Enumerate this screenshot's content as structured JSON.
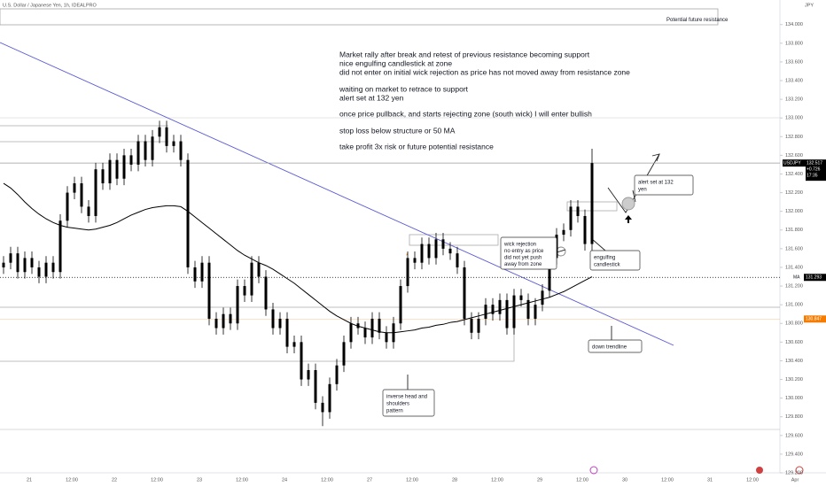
{
  "chart_data": {
    "type": "candlestick",
    "title": "U.S. Dollar / Japanese Yen, 1h, IDEALPRO",
    "currency": "JPY",
    "open": [
      131.4,
      131.45,
      131.55,
      131.35,
      131.5,
      131.4,
      131.3,
      131.45,
      131.35,
      131.9,
      132.2,
      132.3,
      132.05,
      131.95,
      132.45,
      132.3,
      132.55,
      132.35,
      132.6,
      132.5,
      132.75,
      132.55,
      132.8,
      132.9,
      132.7,
      132.75,
      132.55,
      131.4,
      131.25,
      131.45,
      130.85,
      130.75,
      130.9,
      130.8,
      131.2,
      131.1,
      131.45,
      131.3,
      130.95,
      130.75,
      130.85,
      130.55,
      130.6,
      130.2,
      130.3,
      129.95,
      129.85,
      130.15,
      130.35,
      130.6,
      130.8,
      130.75,
      130.65,
      130.85,
      130.7,
      130.6,
      130.8,
      131.2,
      131.5,
      131.45,
      131.65,
      131.5,
      131.7,
      131.6,
      131.55,
      131.4,
      130.85,
      130.7,
      130.85,
      131.0,
      130.9,
      131.05,
      130.75,
      131.1,
      131.05,
      130.85,
      131.0,
      131.15,
      131.5,
      131.75,
      131.8,
      132.05,
      131.95,
      131.65
    ],
    "high": [
      131.52,
      131.62,
      131.62,
      131.57,
      131.57,
      131.47,
      131.52,
      131.52,
      131.97,
      132.27,
      132.37,
      132.37,
      132.12,
      132.52,
      132.52,
      132.62,
      132.62,
      132.67,
      132.67,
      132.82,
      132.82,
      132.87,
      132.97,
      132.97,
      132.82,
      132.82,
      132.62,
      131.47,
      131.52,
      131.52,
      130.92,
      130.97,
      130.97,
      131.27,
      131.27,
      131.52,
      131.52,
      131.37,
      131.02,
      130.92,
      130.92,
      130.67,
      130.67,
      130.37,
      130.37,
      130.02,
      130.22,
      130.42,
      130.67,
      130.87,
      130.87,
      130.82,
      130.92,
      130.92,
      130.77,
      130.87,
      131.27,
      131.57,
      131.57,
      131.72,
      131.72,
      131.77,
      131.77,
      131.67,
      131.62,
      131.47,
      130.92,
      130.92,
      131.07,
      131.07,
      131.12,
      131.12,
      131.17,
      131.17,
      131.12,
      131.07,
      131.22,
      131.57,
      131.82,
      131.87,
      132.12,
      132.12,
      132.02,
      132.67
    ],
    "low": [
      131.33,
      131.38,
      131.28,
      131.28,
      131.33,
      131.23,
      131.23,
      131.28,
      131.28,
      131.83,
      132.13,
      131.98,
      131.88,
      131.88,
      132.23,
      132.23,
      132.28,
      132.28,
      132.43,
      132.43,
      132.48,
      132.48,
      132.73,
      132.63,
      132.63,
      132.48,
      131.33,
      131.18,
      131.18,
      130.78,
      130.68,
      130.68,
      130.73,
      130.73,
      131.03,
      131.03,
      131.23,
      130.88,
      130.68,
      130.68,
      130.48,
      130.48,
      130.13,
      130.13,
      129.88,
      129.7,
      129.78,
      130.08,
      130.28,
      130.53,
      130.68,
      130.58,
      130.58,
      130.63,
      130.53,
      130.53,
      130.73,
      131.13,
      131.38,
      131.38,
      131.43,
      131.43,
      131.53,
      131.48,
      131.33,
      130.78,
      130.63,
      130.63,
      130.78,
      130.83,
      130.83,
      130.68,
      130.68,
      130.98,
      130.78,
      130.78,
      130.93,
      131.08,
      131.43,
      131.68,
      131.73,
      131.88,
      131.58,
      131.58
    ],
    "close": [
      131.45,
      131.55,
      131.35,
      131.5,
      131.4,
      131.3,
      131.45,
      131.35,
      131.9,
      132.2,
      132.3,
      132.05,
      131.95,
      132.45,
      132.3,
      132.55,
      132.35,
      132.6,
      132.5,
      132.75,
      132.55,
      132.8,
      132.9,
      132.7,
      132.75,
      132.55,
      131.4,
      131.25,
      131.45,
      130.85,
      130.75,
      130.9,
      130.8,
      131.2,
      131.1,
      131.45,
      131.3,
      130.95,
      130.75,
      130.85,
      130.55,
      130.6,
      130.2,
      130.3,
      129.95,
      129.85,
      130.15,
      130.35,
      130.6,
      130.8,
      130.75,
      130.65,
      130.85,
      130.7,
      130.6,
      130.8,
      131.2,
      131.5,
      131.45,
      131.65,
      131.5,
      131.7,
      131.6,
      131.55,
      131.4,
      130.85,
      130.7,
      130.85,
      131.0,
      130.9,
      131.05,
      130.75,
      131.1,
      131.05,
      130.85,
      131.0,
      131.15,
      131.5,
      131.75,
      131.8,
      132.05,
      131.95,
      131.65,
      132.517
    ],
    "ma": {
      "name": "MA",
      "color": "#000000",
      "values": [
        132.3,
        132.25,
        132.18,
        132.1,
        132.03,
        131.97,
        131.92,
        131.88,
        131.85,
        131.83,
        131.82,
        131.81,
        131.8,
        131.81,
        131.83,
        131.85,
        131.88,
        131.92,
        131.96,
        131.99,
        132.02,
        132.04,
        132.05,
        132.06,
        132.06,
        132.05,
        132.0,
        131.94,
        131.88,
        131.82,
        131.76,
        131.7,
        131.64,
        131.58,
        131.53,
        131.49,
        131.45,
        131.42,
        131.38,
        131.33,
        131.28,
        131.23,
        131.17,
        131.11,
        131.05,
        130.99,
        130.93,
        130.88,
        130.84,
        130.8,
        130.77,
        130.75,
        130.73,
        130.71,
        130.7,
        130.7,
        130.71,
        130.72,
        130.73,
        130.75,
        130.76,
        130.78,
        130.79,
        130.81,
        130.82,
        130.84,
        130.86,
        130.88,
        130.9,
        130.92,
        130.94,
        130.96,
        130.98,
        131.0,
        131.02,
        131.04,
        131.06,
        131.08,
        131.11,
        131.14,
        131.18,
        131.22,
        131.26,
        131.3
      ]
    },
    "candle_color": "#000000",
    "ylim": [
      129.2,
      134.263
    ],
    "yticks": [
      {
        "value": 129.2,
        "label": "129.200"
      },
      {
        "value": 129.4,
        "label": "129.400"
      },
      {
        "value": 129.6,
        "label": "129.600"
      },
      {
        "value": 129.8,
        "label": "129.800"
      },
      {
        "value": 130.0,
        "label": "130.000"
      },
      {
        "value": 130.2,
        "label": "130.200"
      },
      {
        "value": 130.4,
        "label": "130.400"
      },
      {
        "value": 130.6,
        "label": "130.600"
      },
      {
        "value": 130.8,
        "label": "130.800"
      },
      {
        "value": 131.0,
        "label": "131.000"
      },
      {
        "value": 131.2,
        "label": "131.200"
      },
      {
        "value": 131.4,
        "label": "131.400"
      },
      {
        "value": 131.6,
        "label": "131.600"
      },
      {
        "value": 131.8,
        "label": "131.800"
      },
      {
        "value": 132.0,
        "label": "132.000"
      },
      {
        "value": 132.2,
        "label": "132.200"
      },
      {
        "value": 132.4,
        "label": "132.400"
      },
      {
        "value": 132.6,
        "label": "132.600"
      },
      {
        "value": 132.8,
        "label": "132.800"
      },
      {
        "value": 133.0,
        "label": "133.000"
      },
      {
        "value": 133.2,
        "label": "133.200"
      },
      {
        "value": 133.4,
        "label": "133.400"
      },
      {
        "value": 133.6,
        "label": "133.600"
      },
      {
        "value": 133.8,
        "label": "133.800"
      },
      {
        "value": 134.0,
        "label": "134.000"
      }
    ],
    "xlabels": [
      "21",
      "12:00",
      "22",
      "12:00",
      "23",
      "12:00",
      "24",
      "12:00",
      "27",
      "12:00",
      "28",
      "12:00",
      "29",
      "12:00",
      "30",
      "12:00",
      "31",
      "12:00",
      "Apr"
    ],
    "price_tag": {
      "symbol": "USDJPY",
      "price": {
        "value": 132.517,
        "label": "132.517"
      },
      "change": "+0.726",
      "time": "17:35",
      "color": "#000000"
    },
    "ma_tag": {
      "name": "MA",
      "price": {
        "value": 131.293,
        "label": "131.293"
      }
    },
    "level_tag": {
      "price": {
        "value": 130.847,
        "label": "130.847"
      },
      "color": "#f57c00"
    },
    "notes": [
      "Market rally after break and retest of previous resistance becoming support",
      "nice engulfing candlestick at zone",
      "did not enter on initial wick rejection as price has not moved away from resistance zone",
      "waiting on market to retrace to support",
      "alert set at 132 yen",
      "once price pullback, and starts rejecting zone (south wick) I will enter bullish",
      "stop loss below structure or 50 MA",
      "take profit 3x risk or future potential resistance"
    ],
    "callouts": [
      {
        "lines": [
          "Potential future resistance"
        ]
      },
      {
        "lines": [
          "alert set at 132",
          "yen"
        ]
      },
      {
        "lines": [
          "wick rejection",
          "no entry as price",
          "did not yet push",
          "away from zone"
        ]
      },
      {
        "lines": [
          "engulfing",
          "candlestick"
        ]
      },
      {
        "lines": [
          "down trendline"
        ]
      },
      {
        "lines": [
          "inverse head and",
          "shoulders",
          "pattern"
        ]
      }
    ]
  }
}
